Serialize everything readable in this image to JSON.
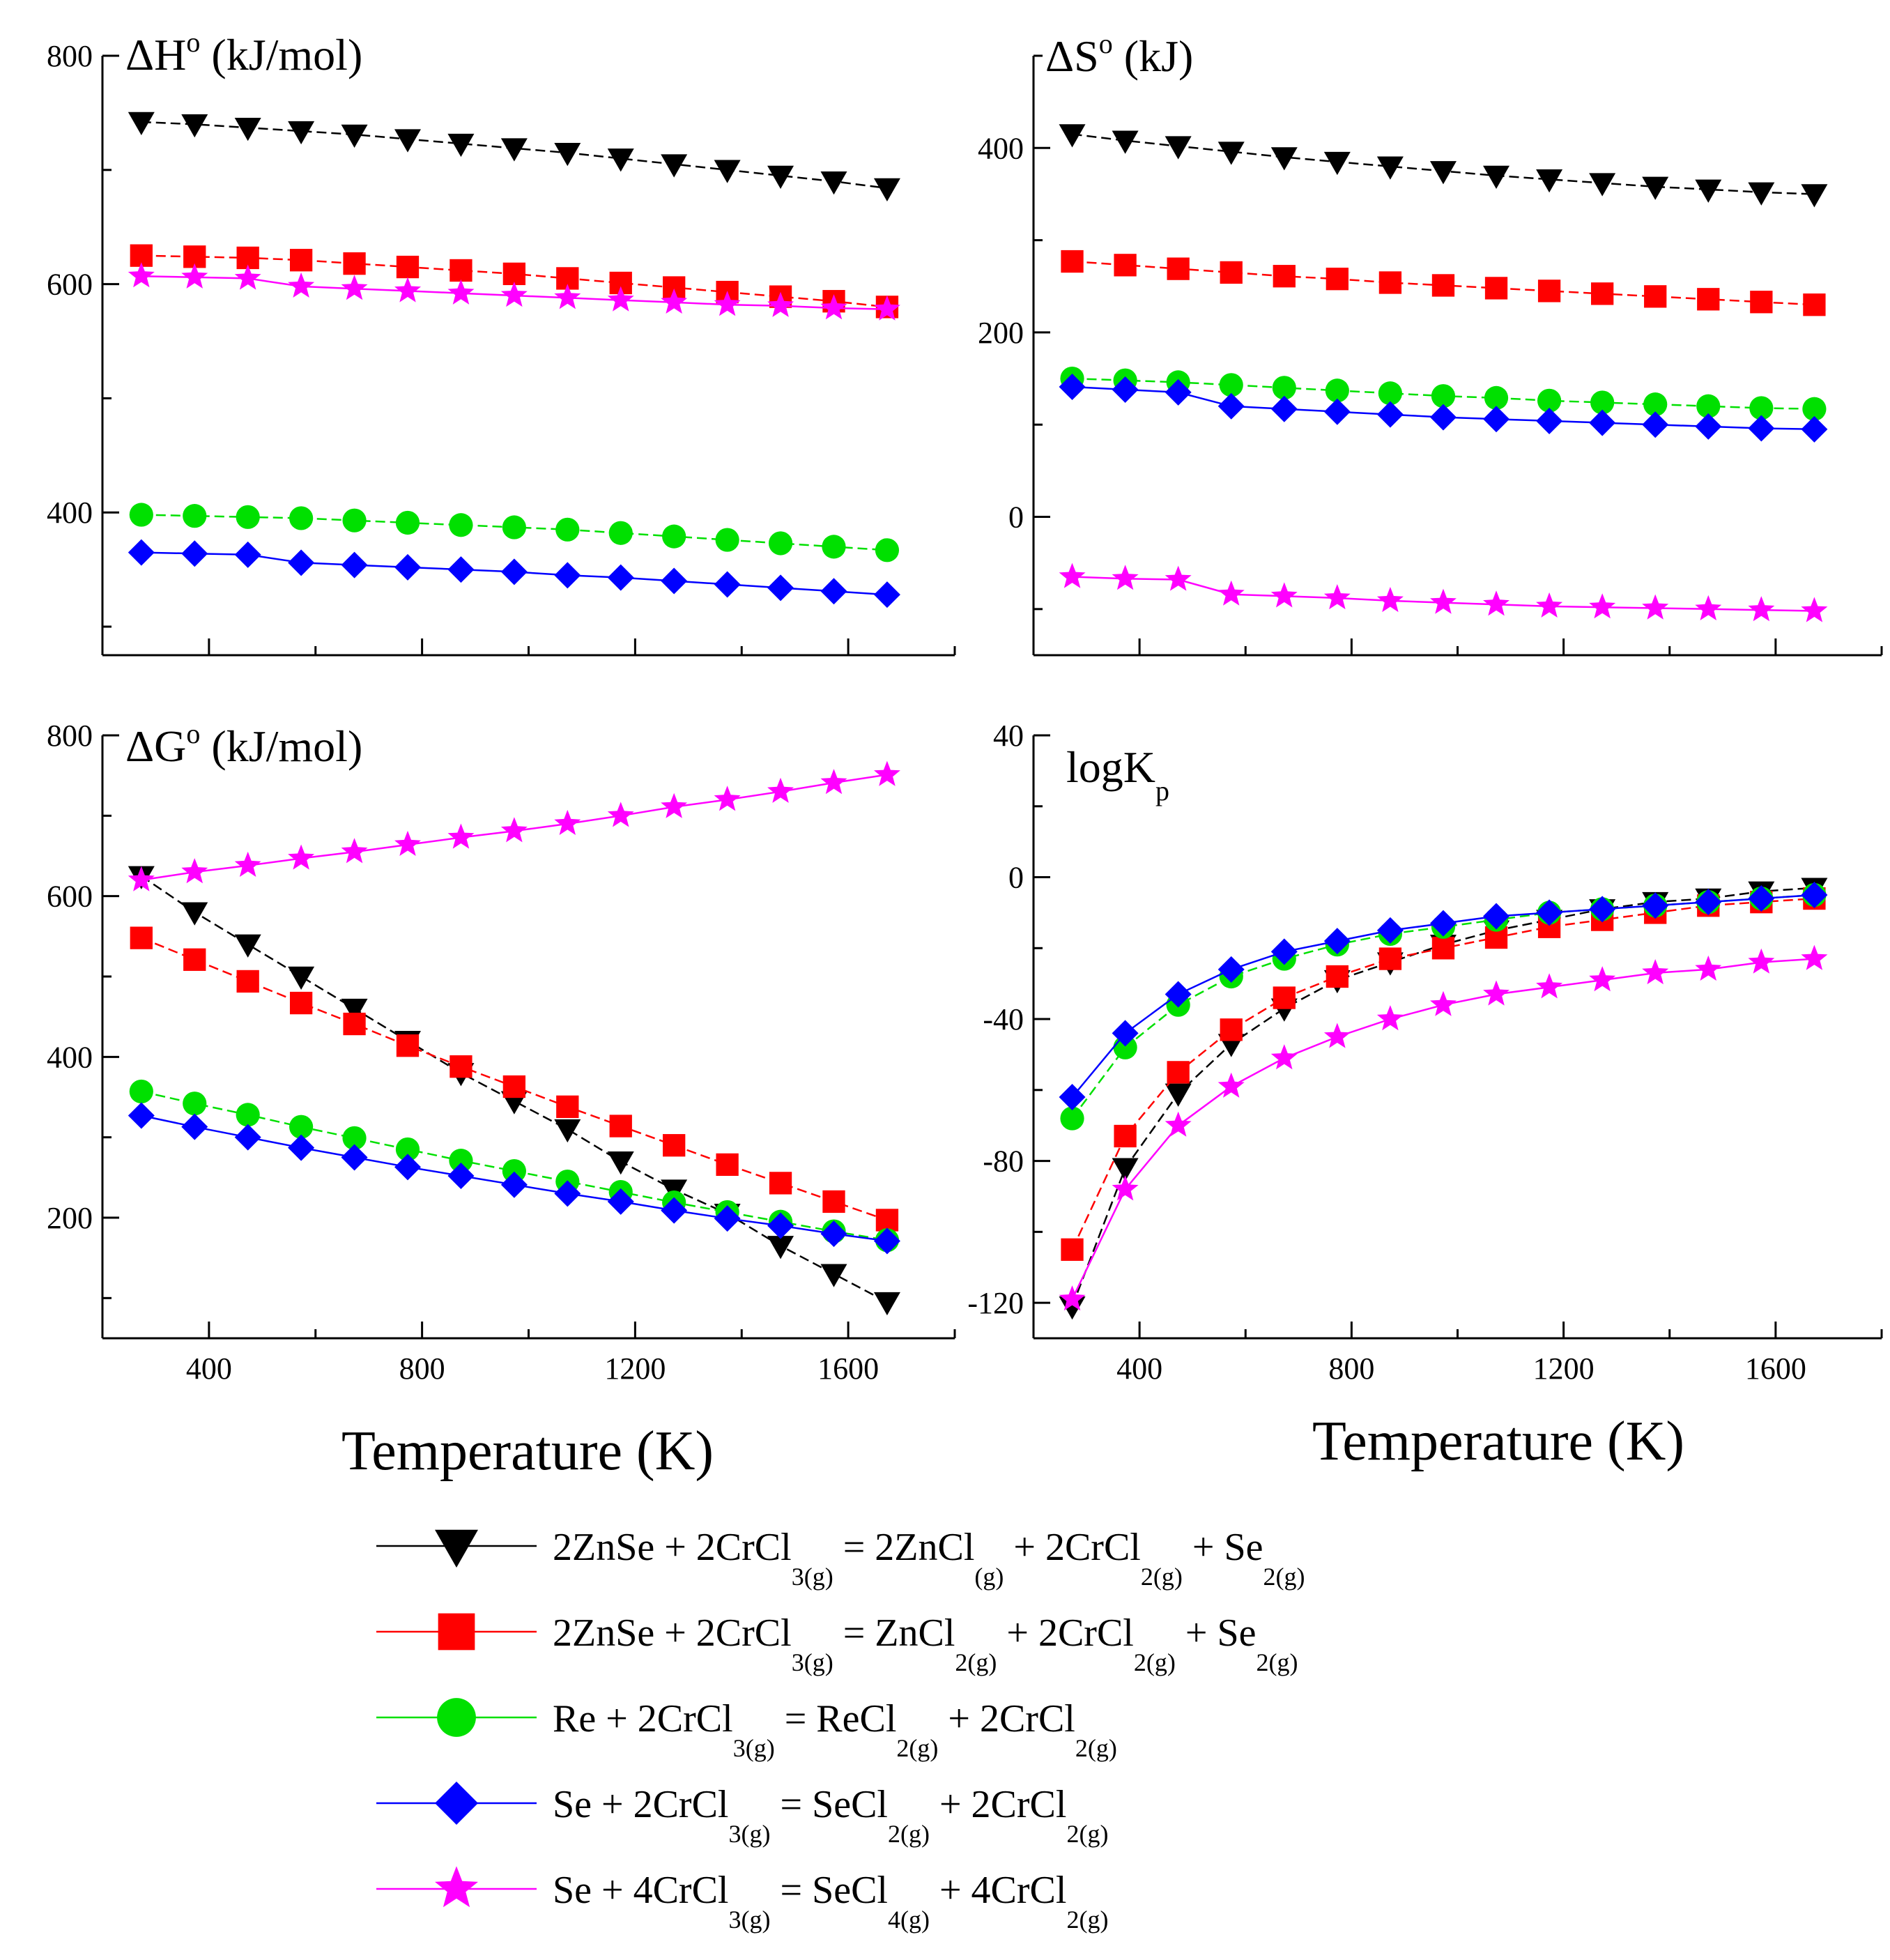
{
  "figure": {
    "xlabel": "Temperature (K)"
  },
  "chart_data": [
    {
      "id": "dH",
      "type": "line",
      "title": "ΔH",
      "title_sup": "o",
      "title_rest": " (kJ/mol)",
      "xlim": [
        200,
        1800
      ],
      "ylim": [
        275,
        800
      ],
      "xticks": [
        400,
        800,
        1200,
        1600
      ],
      "yticks": [
        400,
        600,
        800
      ],
      "x": [
        273,
        373,
        473,
        573,
        673,
        773,
        873,
        973,
        1073,
        1173,
        1273,
        1373,
        1473,
        1573,
        1673
      ],
      "series": [
        {
          "name": "s1",
          "values": [
            742,
            740,
            737,
            734,
            731,
            727,
            723,
            719,
            715,
            710,
            705,
            700,
            695,
            690,
            684
          ]
        },
        {
          "name": "s2",
          "values": [
            625,
            624,
            623,
            621,
            618,
            615,
            612,
            609,
            605,
            601,
            597,
            593,
            589,
            585,
            580
          ]
        },
        {
          "name": "s3",
          "values": [
            398,
            397,
            396,
            395,
            393,
            391,
            389,
            387,
            385,
            382,
            379,
            376,
            373,
            370,
            367
          ]
        },
        {
          "name": "s4",
          "values": [
            365,
            364,
            363,
            356,
            354,
            352,
            350,
            348,
            345,
            343,
            340,
            337,
            334,
            331,
            328
          ]
        },
        {
          "name": "s5",
          "values": [
            607,
            606,
            605,
            598,
            596,
            594,
            592,
            590,
            588,
            586,
            584,
            582,
            581,
            579,
            578
          ]
        }
      ]
    },
    {
      "id": "dS",
      "type": "line",
      "title": "ΔS",
      "title_sup": "o",
      "title_rest": " (kJ)",
      "xlim": [
        200,
        1800
      ],
      "ylim": [
        -150,
        500
      ],
      "xticks": [
        400,
        800,
        1200,
        1600
      ],
      "yticks": [
        0,
        200,
        400
      ],
      "x": [
        273,
        373,
        473,
        573,
        673,
        773,
        873,
        973,
        1073,
        1173,
        1273,
        1373,
        1473,
        1573,
        1673
      ],
      "series": [
        {
          "name": "s1",
          "values": [
            415,
            408,
            402,
            396,
            390,
            385,
            380,
            375,
            370,
            366,
            362,
            358,
            355,
            352,
            350
          ]
        },
        {
          "name": "s2",
          "values": [
            277,
            273,
            269,
            265,
            261,
            258,
            254,
            251,
            248,
            245,
            242,
            239,
            236,
            233,
            230
          ]
        },
        {
          "name": "s3",
          "values": [
            150,
            148,
            146,
            143,
            140,
            137,
            134,
            131,
            129,
            126,
            124,
            122,
            120,
            118,
            117
          ]
        },
        {
          "name": "s4",
          "values": [
            141,
            138,
            135,
            120,
            117,
            114,
            111,
            108,
            106,
            104,
            102,
            100,
            98,
            96,
            95
          ]
        },
        {
          "name": "s5",
          "values": [
            -65,
            -67,
            -68,
            -84,
            -86,
            -88,
            -91,
            -93,
            -95,
            -97,
            -98,
            -99,
            -100,
            -101,
            -102
          ]
        }
      ]
    },
    {
      "id": "dG",
      "type": "line",
      "title": "ΔG",
      "title_sup": "o",
      "title_rest": " (kJ/mol)",
      "xlim": [
        200,
        1800
      ],
      "ylim": [
        50,
        800
      ],
      "xticks": [
        400,
        800,
        1200,
        1600
      ],
      "yticks": [
        200,
        400,
        600,
        800
      ],
      "x": [
        273,
        373,
        473,
        573,
        673,
        773,
        873,
        973,
        1073,
        1173,
        1273,
        1373,
        1473,
        1573,
        1673
      ],
      "series": [
        {
          "name": "s1",
          "values": [
            625,
            580,
            540,
            500,
            460,
            420,
            380,
            345,
            310,
            270,
            235,
            205,
            165,
            130,
            95
          ]
        },
        {
          "name": "s2",
          "values": [
            548,
            521,
            494,
            467,
            441,
            414,
            388,
            363,
            338,
            314,
            290,
            266,
            243,
            220,
            197
          ]
        },
        {
          "name": "s3",
          "values": [
            357,
            342,
            328,
            313,
            299,
            285,
            271,
            258,
            245,
            232,
            219,
            207,
            195,
            183,
            172
          ]
        },
        {
          "name": "s4",
          "values": [
            327,
            313,
            300,
            287,
            275,
            263,
            252,
            241,
            230,
            220,
            209,
            199,
            190,
            180,
            171
          ]
        },
        {
          "name": "s5",
          "values": [
            620,
            630,
            638,
            647,
            655,
            664,
            673,
            681,
            690,
            700,
            711,
            720,
            730,
            741,
            751
          ]
        }
      ]
    },
    {
      "id": "logKp",
      "type": "line",
      "title": "logK",
      "title_sub": "p",
      "xlim": [
        200,
        1800
      ],
      "ylim": [
        -130,
        40
      ],
      "xticks": [
        400,
        800,
        1200,
        1600
      ],
      "yticks": [
        -120,
        -80,
        -40,
        0,
        40
      ],
      "x": [
        273,
        373,
        473,
        573,
        673,
        773,
        873,
        973,
        1073,
        1173,
        1273,
        1373,
        1473,
        1573,
        1673
      ],
      "series": [
        {
          "name": "s1",
          "values": [
            -121,
            -82,
            -61,
            -47,
            -37,
            -29,
            -24,
            -19,
            -15,
            -12,
            -9,
            -7,
            -6,
            -4,
            -3
          ]
        },
        {
          "name": "s2",
          "values": [
            -105,
            -73,
            -55,
            -43,
            -34,
            -28,
            -23,
            -20,
            -17,
            -14,
            -12,
            -10,
            -8,
            -7,
            -6
          ]
        },
        {
          "name": "s3",
          "values": [
            -68,
            -48,
            -36,
            -28,
            -23,
            -19,
            -16,
            -14,
            -12,
            -10,
            -9,
            -8,
            -7,
            -6,
            -5
          ]
        },
        {
          "name": "s4",
          "values": [
            -62,
            -44,
            -33,
            -26,
            -21,
            -18,
            -15,
            -13,
            -11,
            -10,
            -9,
            -8,
            -7,
            -6,
            -5
          ]
        },
        {
          "name": "s5",
          "values": [
            -119,
            -88,
            -70,
            -59,
            -51,
            -45,
            -40,
            -36,
            -33,
            -31,
            -29,
            -27,
            -26,
            -24,
            -23
          ]
        }
      ]
    }
  ],
  "legend": [
    {
      "color": "#000000",
      "marker": "triangle-down",
      "parts": [
        [
          "",
          "2ZnSe + 2CrCl"
        ],
        [
          "sub",
          "3(g)"
        ],
        [
          "",
          " = 2ZnCl"
        ],
        [
          "sub",
          "(g)"
        ],
        [
          "",
          " + 2CrCl"
        ],
        [
          "sub",
          "2(g)"
        ],
        [
          "",
          " + Se"
        ],
        [
          "sub",
          "2(g)"
        ]
      ]
    },
    {
      "color": "#ff0000",
      "marker": "square",
      "parts": [
        [
          "",
          "2ZnSe + 2CrCl"
        ],
        [
          "sub",
          "3(g)"
        ],
        [
          "",
          " = ZnCl"
        ],
        [
          "sub",
          "2(g)"
        ],
        [
          "",
          " + 2CrCl"
        ],
        [
          "sub",
          "2(g)"
        ],
        [
          "",
          " + Se"
        ],
        [
          "sub",
          "2(g)"
        ]
      ]
    },
    {
      "color": "#00e000",
      "marker": "circle",
      "parts": [
        [
          "",
          "Re + 2CrCl"
        ],
        [
          "sub",
          "3(g)"
        ],
        [
          "",
          " = ReCl"
        ],
        [
          "sub",
          "2(g)"
        ],
        [
          "",
          " + 2CrCl"
        ],
        [
          "sub",
          "2(g)"
        ]
      ]
    },
    {
      "color": "#0000ff",
      "marker": "diamond",
      "parts": [
        [
          "",
          "Se + 2CrCl"
        ],
        [
          "sub",
          "3(g)"
        ],
        [
          "",
          " = SeCl"
        ],
        [
          "sub",
          "2(g)"
        ],
        [
          "",
          " + 2CrCl"
        ],
        [
          "sub",
          "2(g)"
        ]
      ]
    },
    {
      "color": "#ff00ff",
      "marker": "star",
      "parts": [
        [
          "",
          "Se + 4CrCl"
        ],
        [
          "sub",
          "3(g)"
        ],
        [
          "",
          " = SeCl"
        ],
        [
          "sub",
          "4(g)"
        ],
        [
          "",
          " + 4CrCl"
        ],
        [
          "sub",
          "2(g)"
        ]
      ]
    }
  ]
}
